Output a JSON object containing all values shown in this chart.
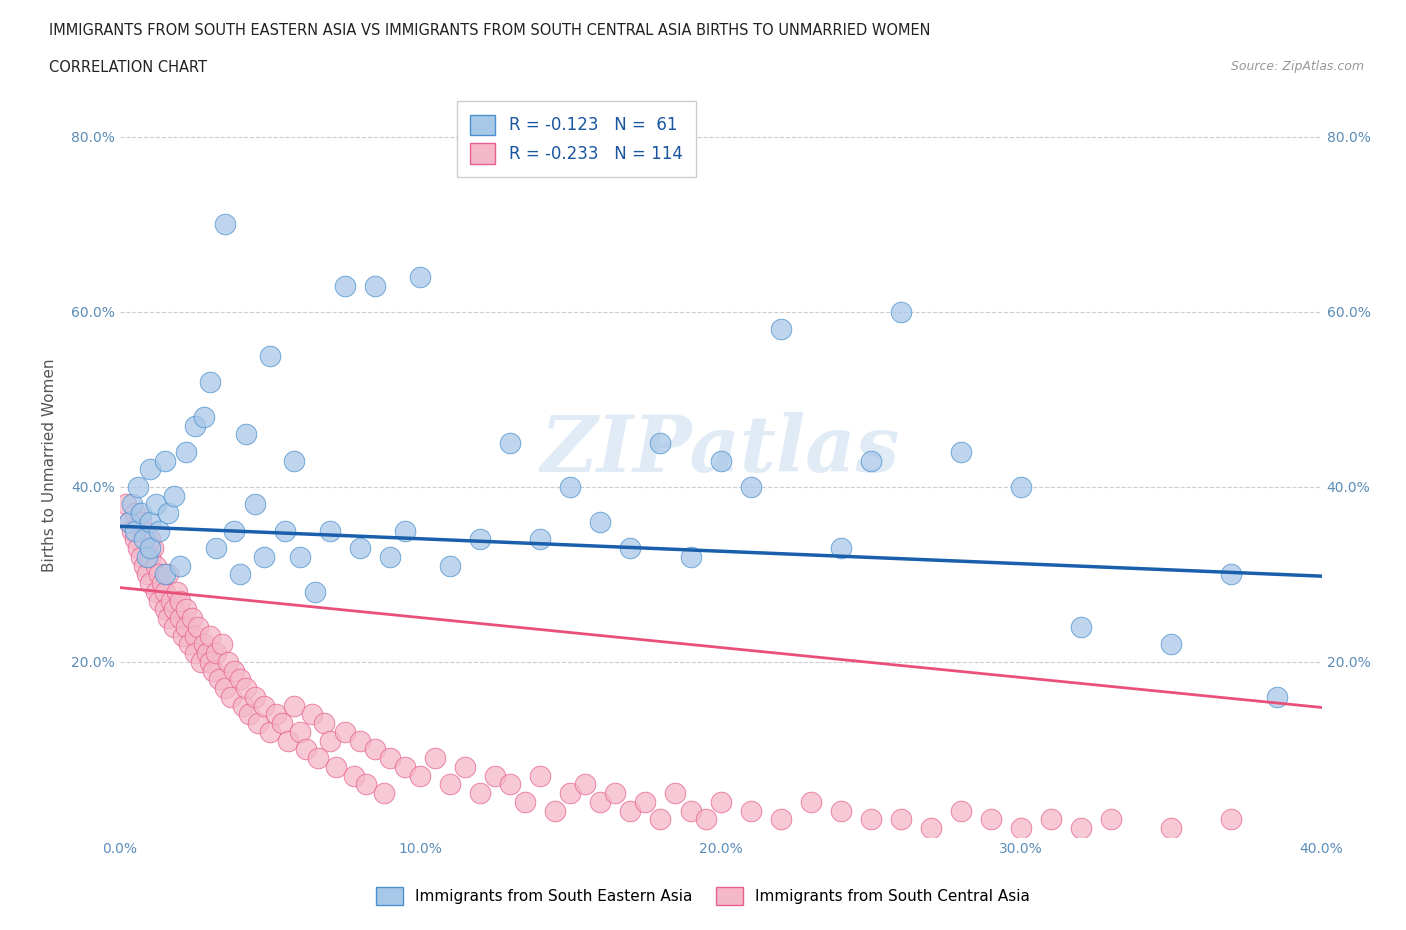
{
  "title_line1": "IMMIGRANTS FROM SOUTH EASTERN ASIA VS IMMIGRANTS FROM SOUTH CENTRAL ASIA BIRTHS TO UNMARRIED WOMEN",
  "title_line2": "CORRELATION CHART",
  "source_text": "Source: ZipAtlas.com",
  "ylabel": "Births to Unmarried Women",
  "xmin": 0.0,
  "xmax": 0.4,
  "ymin": 0.0,
  "ymax": 0.85,
  "xtick_labels": [
    "0.0%",
    "",
    "10.0%",
    "",
    "20.0%",
    "",
    "30.0%",
    "",
    "40.0%"
  ],
  "xtick_values": [
    0.0,
    0.05,
    0.1,
    0.15,
    0.2,
    0.25,
    0.3,
    0.35,
    0.4
  ],
  "ytick_labels": [
    "20.0%",
    "40.0%",
    "60.0%",
    "80.0%"
  ],
  "ytick_values": [
    0.2,
    0.4,
    0.6,
    0.8
  ],
  "blue_color": "#A8C8E8",
  "pink_color": "#F4B8C8",
  "blue_edge_color": "#4A90D0",
  "pink_edge_color": "#E86090",
  "blue_line_color": "#1A5FAB",
  "pink_line_color": "#E8507A",
  "legend_blue_R": "-0.123",
  "legend_blue_N": "61",
  "legend_pink_R": "-0.233",
  "legend_pink_N": "114",
  "legend_label_blue": "Immigrants from South Eastern Asia",
  "legend_label_pink": "Immigrants from South Central Asia",
  "watermark": "ZIPatlas",
  "blue_line_start_y": 0.355,
  "blue_line_end_y": 0.298,
  "pink_line_start_y": 0.285,
  "pink_line_end_y": 0.148,
  "blue_x": [
    0.003,
    0.004,
    0.005,
    0.006,
    0.007,
    0.008,
    0.009,
    0.01,
    0.01,
    0.01,
    0.012,
    0.013,
    0.015,
    0.015,
    0.016,
    0.018,
    0.02,
    0.022,
    0.025,
    0.028,
    0.03,
    0.032,
    0.035,
    0.038,
    0.04,
    0.042,
    0.045,
    0.048,
    0.05,
    0.055,
    0.058,
    0.06,
    0.065,
    0.07,
    0.075,
    0.08,
    0.085,
    0.09,
    0.095,
    0.1,
    0.11,
    0.12,
    0.13,
    0.14,
    0.15,
    0.16,
    0.17,
    0.18,
    0.19,
    0.2,
    0.21,
    0.22,
    0.24,
    0.25,
    0.26,
    0.28,
    0.3,
    0.32,
    0.35,
    0.37,
    0.385
  ],
  "blue_y": [
    0.36,
    0.38,
    0.35,
    0.4,
    0.37,
    0.34,
    0.32,
    0.42,
    0.36,
    0.33,
    0.38,
    0.35,
    0.43,
    0.3,
    0.37,
    0.39,
    0.31,
    0.44,
    0.47,
    0.48,
    0.52,
    0.33,
    0.7,
    0.35,
    0.3,
    0.46,
    0.38,
    0.32,
    0.55,
    0.35,
    0.43,
    0.32,
    0.28,
    0.35,
    0.63,
    0.33,
    0.63,
    0.32,
    0.35,
    0.64,
    0.31,
    0.34,
    0.45,
    0.34,
    0.4,
    0.36,
    0.33,
    0.45,
    0.32,
    0.43,
    0.4,
    0.58,
    0.33,
    0.43,
    0.6,
    0.44,
    0.4,
    0.24,
    0.22,
    0.3,
    0.16
  ],
  "pink_x": [
    0.002,
    0.003,
    0.004,
    0.005,
    0.005,
    0.006,
    0.007,
    0.007,
    0.008,
    0.008,
    0.009,
    0.01,
    0.01,
    0.01,
    0.011,
    0.012,
    0.012,
    0.013,
    0.013,
    0.014,
    0.015,
    0.015,
    0.016,
    0.016,
    0.017,
    0.018,
    0.018,
    0.019,
    0.02,
    0.02,
    0.021,
    0.022,
    0.022,
    0.023,
    0.024,
    0.025,
    0.025,
    0.026,
    0.027,
    0.028,
    0.029,
    0.03,
    0.03,
    0.031,
    0.032,
    0.033,
    0.034,
    0.035,
    0.036,
    0.037,
    0.038,
    0.04,
    0.041,
    0.042,
    0.043,
    0.045,
    0.046,
    0.048,
    0.05,
    0.052,
    0.054,
    0.056,
    0.058,
    0.06,
    0.062,
    0.064,
    0.066,
    0.068,
    0.07,
    0.072,
    0.075,
    0.078,
    0.08,
    0.082,
    0.085,
    0.088,
    0.09,
    0.095,
    0.1,
    0.105,
    0.11,
    0.115,
    0.12,
    0.125,
    0.13,
    0.135,
    0.14,
    0.145,
    0.15,
    0.155,
    0.16,
    0.165,
    0.17,
    0.175,
    0.18,
    0.185,
    0.19,
    0.195,
    0.2,
    0.21,
    0.22,
    0.23,
    0.24,
    0.25,
    0.26,
    0.27,
    0.28,
    0.29,
    0.3,
    0.31,
    0.32,
    0.33,
    0.35,
    0.37
  ],
  "pink_y": [
    0.38,
    0.36,
    0.35,
    0.34,
    0.37,
    0.33,
    0.36,
    0.32,
    0.35,
    0.31,
    0.3,
    0.34,
    0.32,
    0.29,
    0.33,
    0.31,
    0.28,
    0.3,
    0.27,
    0.29,
    0.28,
    0.26,
    0.3,
    0.25,
    0.27,
    0.26,
    0.24,
    0.28,
    0.25,
    0.27,
    0.23,
    0.26,
    0.24,
    0.22,
    0.25,
    0.23,
    0.21,
    0.24,
    0.2,
    0.22,
    0.21,
    0.2,
    0.23,
    0.19,
    0.21,
    0.18,
    0.22,
    0.17,
    0.2,
    0.16,
    0.19,
    0.18,
    0.15,
    0.17,
    0.14,
    0.16,
    0.13,
    0.15,
    0.12,
    0.14,
    0.13,
    0.11,
    0.15,
    0.12,
    0.1,
    0.14,
    0.09,
    0.13,
    0.11,
    0.08,
    0.12,
    0.07,
    0.11,
    0.06,
    0.1,
    0.05,
    0.09,
    0.08,
    0.07,
    0.09,
    0.06,
    0.08,
    0.05,
    0.07,
    0.06,
    0.04,
    0.07,
    0.03,
    0.05,
    0.06,
    0.04,
    0.05,
    0.03,
    0.04,
    0.02,
    0.05,
    0.03,
    0.02,
    0.04,
    0.03,
    0.02,
    0.04,
    0.03,
    0.02,
    0.02,
    0.01,
    0.03,
    0.02,
    0.01,
    0.02,
    0.01,
    0.02,
    0.01,
    0.02
  ]
}
